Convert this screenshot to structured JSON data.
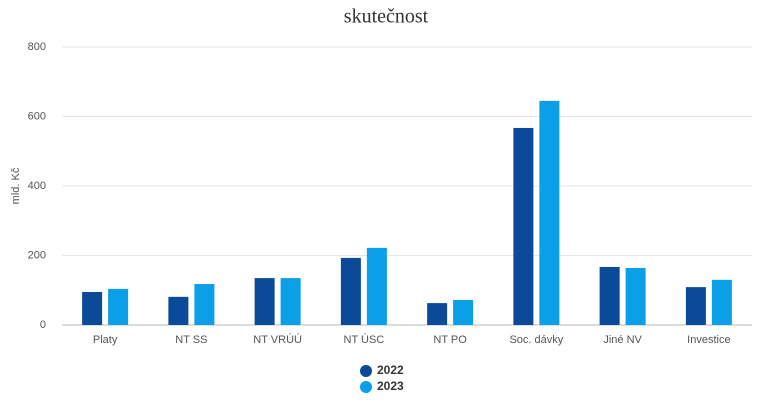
{
  "chart_data": {
    "type": "bar",
    "title": "skutečnost",
    "y_label": "mld. Kč",
    "categories": [
      "Platy",
      "NT SS",
      "NT VRÚÚ",
      "NT ÚSC",
      "NT PO",
      "Soc. dávky",
      "Jiné NV",
      "Investice"
    ],
    "series": [
      {
        "name": "2022",
        "color": "#0a4a98",
        "values": [
          95,
          81,
          135,
          193,
          63,
          567,
          167,
          109
        ]
      },
      {
        "name": "2023",
        "color": "#0a9fe6",
        "values": [
          104,
          118,
          135,
          222,
          72,
          645,
          164,
          130
        ]
      }
    ],
    "ylim": [
      0,
      800
    ],
    "yticks": [
      0,
      200,
      400,
      600,
      800
    ],
    "grid": true
  }
}
